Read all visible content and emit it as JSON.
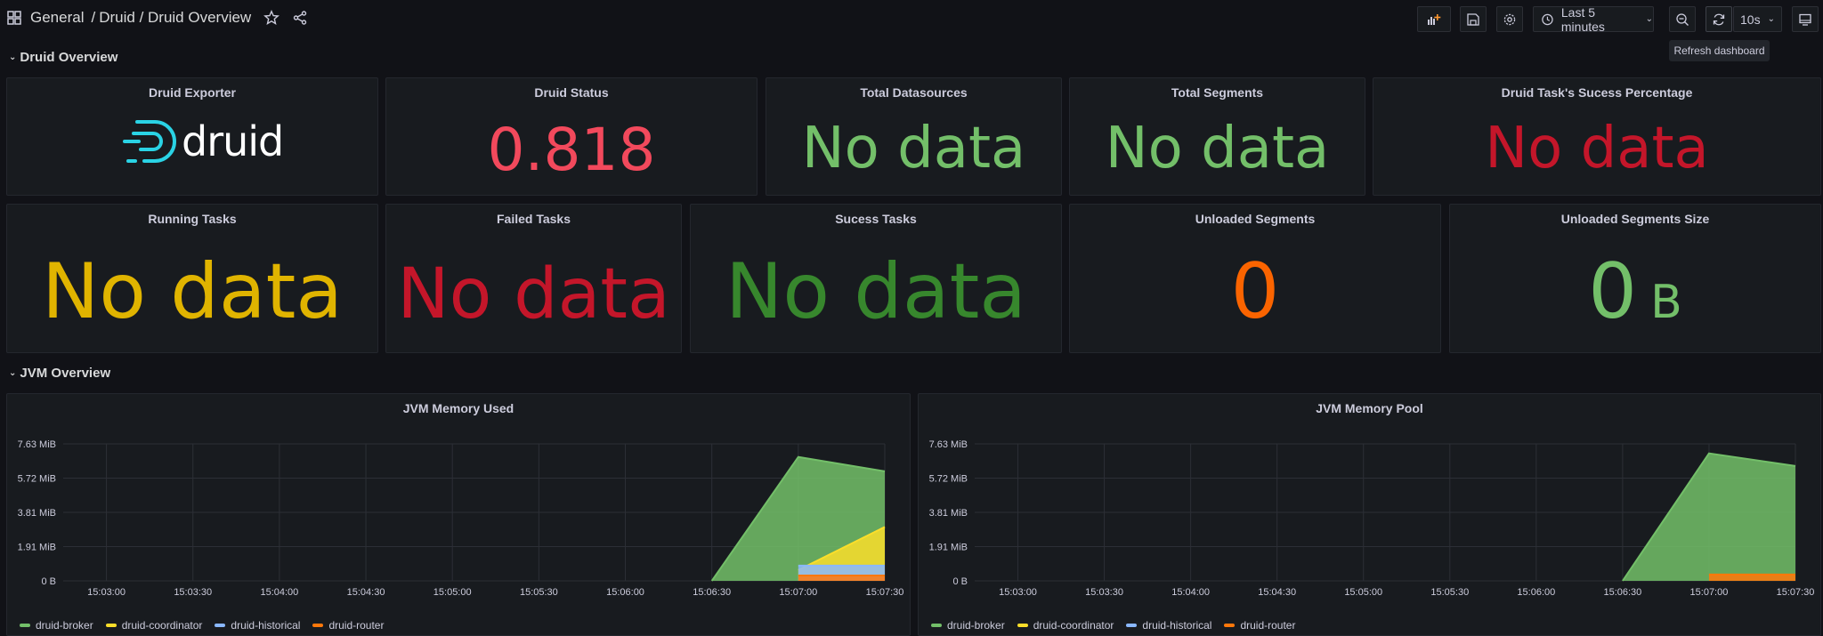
{
  "breadcrumb": {
    "folder": "General",
    "sep": "/",
    "path": "Druid / Druid Overview"
  },
  "toolbar": {
    "time_range": "Last 5 minutes",
    "refresh_interval": "10s",
    "tooltip": "Refresh dashboard"
  },
  "rows": {
    "druid": "Druid Overview",
    "jvm": "JVM Overview"
  },
  "stats": {
    "exporter": {
      "title": "Druid Exporter",
      "logo_text": "druid"
    },
    "status": {
      "title": "Druid Status",
      "value": "0.818",
      "color": "#f2495c"
    },
    "datasources": {
      "title": "Total Datasources",
      "value": "No data",
      "color": "#73bf69"
    },
    "segments": {
      "title": "Total Segments",
      "value": "No data",
      "color": "#73bf69"
    },
    "task_success": {
      "title": "Druid Task's Sucess Percentage",
      "value": "No data",
      "color": "#c4162a"
    },
    "running": {
      "title": "Running Tasks",
      "value": "No data",
      "color": "#e0b400"
    },
    "failed": {
      "title": "Failed Tasks",
      "value": "No data",
      "color": "#c4162a"
    },
    "success": {
      "title": "Sucess Tasks",
      "value": "No data",
      "color": "#37872d"
    },
    "unloaded": {
      "title": "Unloaded Segments",
      "value": "0",
      "color": "#fa6400"
    },
    "unloaded_size": {
      "title": "Unloaded Segments Size",
      "value": "0",
      "unit": "B",
      "color": "#73bf69"
    }
  },
  "chart_data": [
    {
      "type": "area",
      "title": "JVM Memory Used",
      "x": [
        "15:03:00",
        "15:03:30",
        "15:04:00",
        "15:04:30",
        "15:05:00",
        "15:05:30",
        "15:06:00",
        "15:06:30",
        "15:07:00",
        "15:07:30"
      ],
      "y_ticks": [
        "0 B",
        "1.91 MiB",
        "3.81 MiB",
        "5.72 MiB",
        "7.63 MiB"
      ],
      "ylim_mib": [
        0,
        7.63
      ],
      "series": [
        {
          "name": "druid-broker",
          "color": "#73bf69",
          "points": [
            [
              "15:06:30",
              0
            ],
            [
              "15:07:00",
              6.9
            ],
            [
              "15:07:30",
              6.1
            ]
          ]
        },
        {
          "name": "druid-coordinator",
          "color": "#fade2a",
          "points": [
            [
              "15:07:00",
              0.6
            ],
            [
              "15:07:30",
              3.0
            ]
          ]
        },
        {
          "name": "druid-historical",
          "color": "#8ab8ff",
          "points": [
            [
              "15:07:00",
              0.85
            ],
            [
              "15:07:30",
              0.85
            ]
          ]
        },
        {
          "name": "druid-router",
          "color": "#ff780a",
          "points": [
            [
              "15:07:00",
              0.3
            ],
            [
              "15:07:30",
              0.3
            ]
          ]
        }
      ]
    },
    {
      "type": "area",
      "title": "JVM Memory Pool",
      "x": [
        "15:03:00",
        "15:03:30",
        "15:04:00",
        "15:04:30",
        "15:05:00",
        "15:05:30",
        "15:06:00",
        "15:06:30",
        "15:07:00",
        "15:07:30"
      ],
      "y_ticks": [
        "0 B",
        "1.91 MiB",
        "3.81 MiB",
        "5.72 MiB",
        "7.63 MiB"
      ],
      "ylim_mib": [
        0,
        7.63
      ],
      "series": [
        {
          "name": "druid-broker",
          "color": "#73bf69",
          "points": [
            [
              "15:06:30",
              0
            ],
            [
              "15:07:00",
              7.1
            ],
            [
              "15:07:30",
              6.4
            ]
          ]
        },
        {
          "name": "druid-coordinator",
          "color": "#fade2a",
          "points": []
        },
        {
          "name": "druid-historical",
          "color": "#8ab8ff",
          "points": []
        },
        {
          "name": "druid-router",
          "color": "#ff780a",
          "points": [
            [
              "15:07:00",
              0.35
            ],
            [
              "15:07:30",
              0.35
            ]
          ]
        }
      ]
    }
  ]
}
